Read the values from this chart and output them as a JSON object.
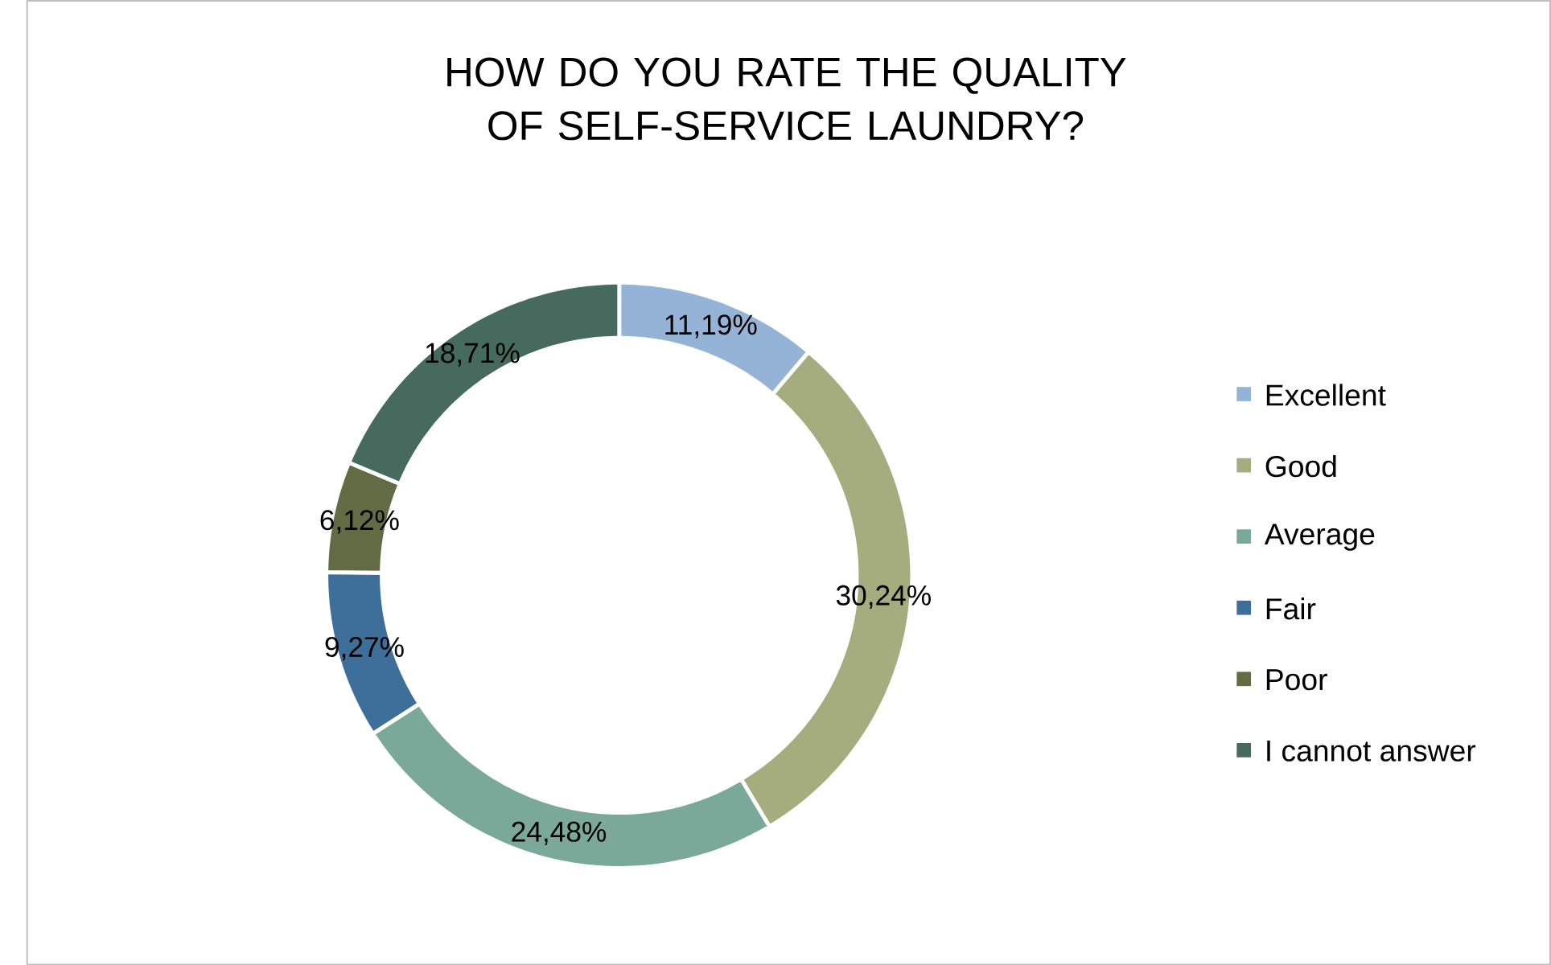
{
  "chart_data": {
    "type": "donut",
    "title": "HOW DO YOU RATE THE QUALITY OF SELF-SERVICE LAUNDRY?",
    "categories": [
      "Excellent",
      "Good",
      "Average",
      "Fair",
      "Poor",
      "I cannot answer"
    ],
    "values": [
      11.19,
      30.24,
      24.48,
      9.27,
      6.12,
      18.71
    ],
    "colors": [
      "#95b3d7",
      "#a5ad7f",
      "#7aa99a",
      "#3e6f9a",
      "#636b45",
      "#466a5e"
    ],
    "value_labels": [
      "11,19%",
      "30,24%",
      "24,48%",
      "9,27%",
      "6,12%",
      "18,71%"
    ],
    "legend": "right"
  }
}
